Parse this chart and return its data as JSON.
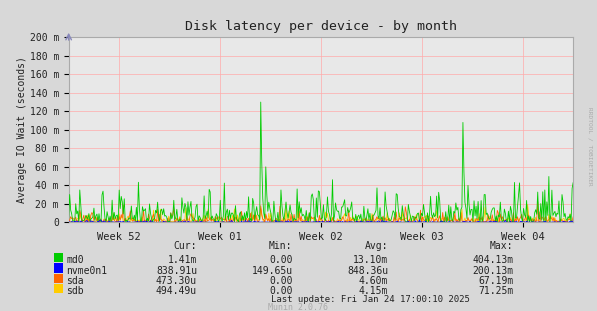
{
  "title": "Disk latency per device - by month",
  "ylabel": "Average IO Wait (seconds)",
  "background_color": "#d8d8d8",
  "plot_bg_color": "#e8e8e8",
  "grid_color": "#ffaaaa",
  "ytick_labels": [
    "0",
    "20 m",
    "40 m",
    "60 m",
    "80 m",
    "100 m",
    "120 m",
    "140 m",
    "160 m",
    "180 m",
    "200 m"
  ],
  "ytick_values": [
    0,
    0.02,
    0.04,
    0.06,
    0.08,
    0.1,
    0.12,
    0.14,
    0.16,
    0.18,
    0.2
  ],
  "xtick_labels": [
    "Week 52",
    "Week 01",
    "Week 02",
    "Week 03",
    "Week 04"
  ],
  "colors": {
    "md0": "#00cc00",
    "nvme0n1": "#0000ff",
    "sda": "#ff6600",
    "sdb": "#ffcc00"
  },
  "legend": [
    {
      "label": "md0",
      "cur": "1.41m",
      "min": "0.00",
      "avg": "13.10m",
      "max": "404.13m"
    },
    {
      "label": "nvme0n1",
      "cur": "838.91u",
      "min": "149.65u",
      "avg": "848.36u",
      "max": "200.13m"
    },
    {
      "label": "sda",
      "cur": "473.30u",
      "min": "0.00",
      "avg": "4.60m",
      "max": "67.19m"
    },
    {
      "label": "sdb",
      "cur": "494.49u",
      "min": "0.00",
      "avg": "4.15m",
      "max": "71.25m"
    }
  ],
  "last_update": "Last update: Fri Jan 24 17:00:10 2025",
  "munin_version": "Munin 2.0.76",
  "right_label": "RRDTOOL / TOBIOETIKER",
  "ylim": [
    0,
    0.2
  ],
  "n_points": 500
}
